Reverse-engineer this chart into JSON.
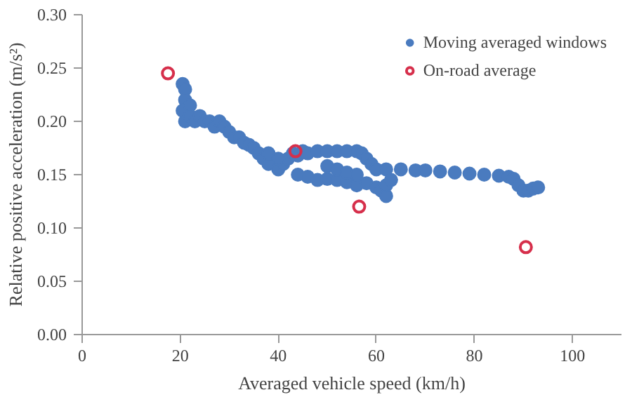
{
  "chart_data": {
    "type": "scatter",
    "xlabel": "Averaged vehicle speed (km/h)",
    "ylabel": "Relative positive acceleration (m/s²)",
    "xlim": [
      0,
      110
    ],
    "xticks": [
      0,
      20,
      40,
      60,
      80,
      100
    ],
    "ylim": [
      0,
      0.3
    ],
    "yticks": [
      {
        "value": 0,
        "label": "0.00"
      },
      {
        "value": 0.05,
        "label": "0.05"
      },
      {
        "value": 0.1,
        "label": "0.10"
      },
      {
        "value": 0.15,
        "label": "0.15"
      },
      {
        "value": 0.2,
        "label": "0.20"
      },
      {
        "value": 0.25,
        "label": "0.25"
      },
      {
        "value": 0.3,
        "label": "0.30"
      }
    ],
    "grid": false,
    "legend": "top right",
    "marker": "circle",
    "series": [
      {
        "name": "Moving averaged windows",
        "color": "#4a7bbf",
        "x": [
          20.5,
          21,
          21,
          20.5,
          21,
          22,
          22,
          23,
          24,
          25,
          26,
          27,
          28,
          29,
          30,
          31,
          32,
          33,
          34,
          35,
          36,
          37,
          38,
          40,
          41,
          42,
          43,
          44,
          45,
          46,
          48,
          50,
          52,
          54,
          56,
          57,
          58,
          59,
          60,
          62,
          65,
          68,
          70,
          73,
          76,
          79,
          82,
          85,
          87,
          88,
          89,
          90,
          91,
          92,
          93,
          44,
          46,
          48,
          50,
          52,
          54,
          56,
          58,
          60,
          61,
          62,
          62,
          63,
          50,
          52,
          54,
          56,
          38,
          40
        ],
        "values": [
          0.235,
          0.23,
          0.22,
          0.21,
          0.2,
          0.215,
          0.205,
          0.2,
          0.205,
          0.2,
          0.2,
          0.195,
          0.2,
          0.195,
          0.19,
          0.185,
          0.185,
          0.18,
          0.178,
          0.175,
          0.17,
          0.165,
          0.16,
          0.155,
          0.16,
          0.165,
          0.17,
          0.168,
          0.172,
          0.17,
          0.172,
          0.172,
          0.172,
          0.172,
          0.172,
          0.17,
          0.165,
          0.16,
          0.155,
          0.155,
          0.155,
          0.154,
          0.154,
          0.153,
          0.152,
          0.151,
          0.15,
          0.149,
          0.148,
          0.146,
          0.14,
          0.135,
          0.135,
          0.137,
          0.138,
          0.15,
          0.148,
          0.145,
          0.146,
          0.145,
          0.143,
          0.14,
          0.142,
          0.138,
          0.135,
          0.13,
          0.14,
          0.145,
          0.158,
          0.155,
          0.152,
          0.15,
          0.17,
          0.165
        ]
      },
      {
        "name": "On-road average",
        "color": "#d62f4b",
        "x": [
          17.5,
          43.5,
          56.5,
          90.5
        ],
        "values": [
          0.245,
          0.172,
          0.12,
          0.082
        ]
      }
    ]
  }
}
